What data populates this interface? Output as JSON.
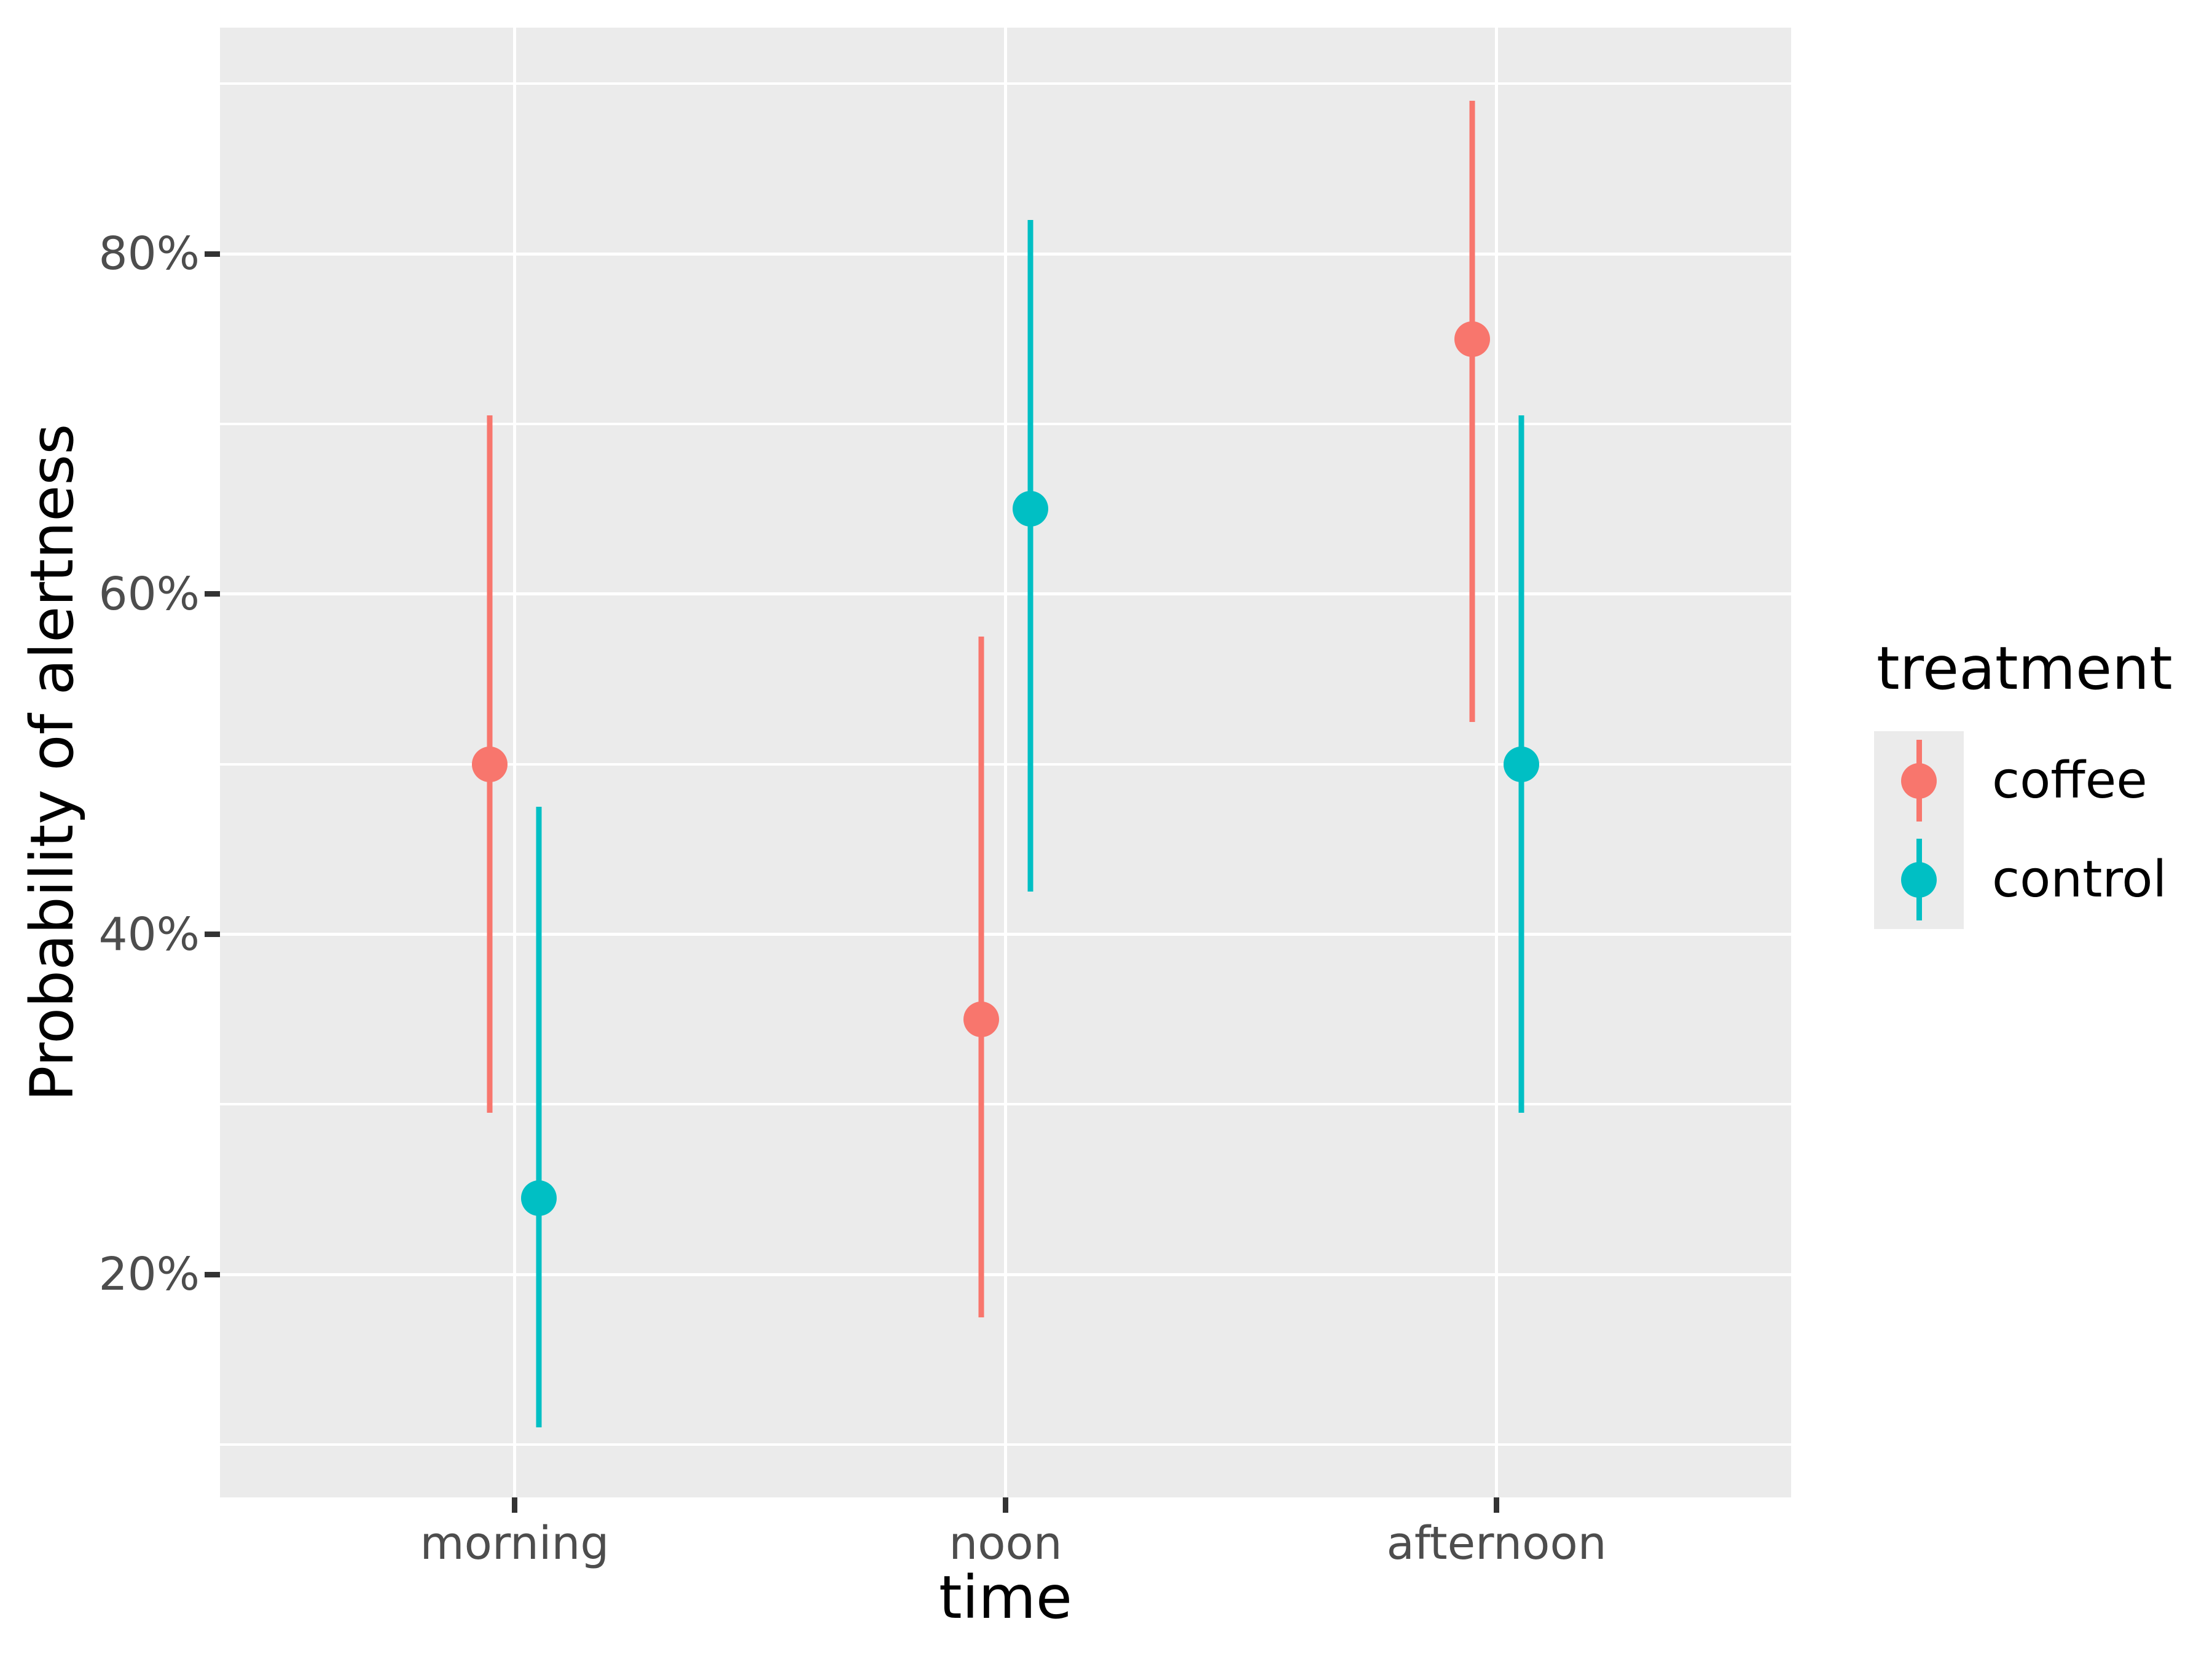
{
  "chart_data": {
    "type": "pointrange",
    "title": "",
    "xlabel": "time",
    "ylabel": "Probability of alertness",
    "categories": [
      "morning",
      "noon",
      "afternoon"
    ],
    "series": [
      {
        "name": "coffee",
        "color": "#F8766D",
        "points": [
          {
            "x": "morning",
            "y": 50,
            "ymin": 29.5,
            "ymax": 70.5
          },
          {
            "x": "noon",
            "y": 35,
            "ymin": 17.5,
            "ymax": 57.5
          },
          {
            "x": "afternoon",
            "y": 75,
            "ymin": 52.5,
            "ymax": 89
          }
        ]
      },
      {
        "name": "control",
        "color": "#00BFC4",
        "points": [
          {
            "x": "morning",
            "y": 24.5,
            "ymin": 11,
            "ymax": 47.5
          },
          {
            "x": "noon",
            "y": 65,
            "ymin": 42.5,
            "ymax": 82
          },
          {
            "x": "afternoon",
            "y": 50,
            "ymin": 29.5,
            "ymax": 70.5
          }
        ]
      }
    ],
    "y_axis": {
      "unit": "percent",
      "tick_values": [
        20,
        40,
        60,
        80
      ],
      "tick_labels": [
        "20%",
        "40%",
        "60%",
        "80%"
      ],
      "minor_tick_values": [
        10,
        30,
        50,
        70,
        90
      ],
      "ylim": [
        6.9,
        93.3
      ],
      "grid": "on"
    },
    "x_axis": {
      "tick_labels": [
        "morning",
        "noon",
        "afternoon"
      ]
    },
    "legend": {
      "title": "treatment",
      "position": "right",
      "entries": [
        {
          "label": "coffee",
          "color": "#F8766D"
        },
        {
          "label": "control",
          "color": "#00BFC4"
        }
      ]
    },
    "style": {
      "panel_bg": "#EBEBEB",
      "grid_color": "#FFFFFF",
      "tick_color": "#333333",
      "tick_label_color": "#4D4D4D",
      "title_color": "#000000"
    }
  }
}
